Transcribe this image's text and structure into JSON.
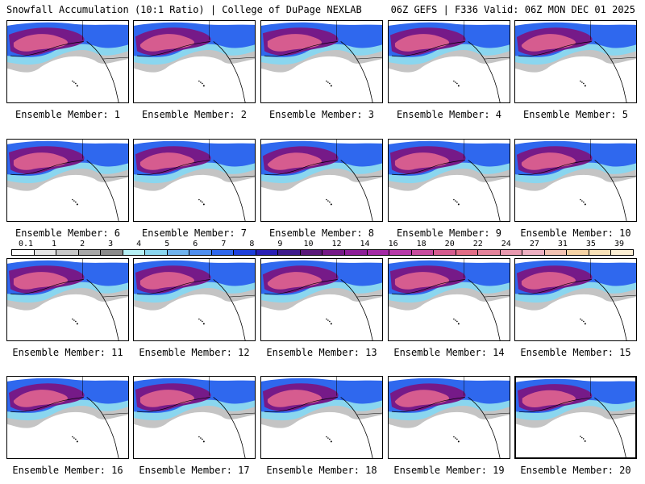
{
  "header": {
    "title_left": "Snowfall Accumulation (10:1 Ratio) | College of DuPage NEXLAB",
    "title_right": "06Z GEFS | F336 Valid: 06Z MON DEC 01 2025"
  },
  "members": [
    {
      "label": "Ensemble Member: 1",
      "selected": false
    },
    {
      "label": "Ensemble Member: 2",
      "selected": false
    },
    {
      "label": "Ensemble Member: 3",
      "selected": false
    },
    {
      "label": "Ensemble Member: 4",
      "selected": false
    },
    {
      "label": "Ensemble Member: 5",
      "selected": false
    },
    {
      "label": "Ensemble Member: 6",
      "selected": false
    },
    {
      "label": "Ensemble Member: 7",
      "selected": false
    },
    {
      "label": "Ensemble Member: 8",
      "selected": false
    },
    {
      "label": "Ensemble Member: 9",
      "selected": false
    },
    {
      "label": "Ensemble Member: 10",
      "selected": false
    },
    {
      "label": "Ensemble Member: 11",
      "selected": false
    },
    {
      "label": "Ensemble Member: 12",
      "selected": false
    },
    {
      "label": "Ensemble Member: 13",
      "selected": false
    },
    {
      "label": "Ensemble Member: 14",
      "selected": false
    },
    {
      "label": "Ensemble Member: 15",
      "selected": false
    },
    {
      "label": "Ensemble Member: 16",
      "selected": false
    },
    {
      "label": "Ensemble Member: 17",
      "selected": false
    },
    {
      "label": "Ensemble Member: 18",
      "selected": false
    },
    {
      "label": "Ensemble Member: 19",
      "selected": false
    },
    {
      "label": "Ensemble Member: 20",
      "selected": true
    }
  ],
  "colorbar": {
    "labels": [
      "0.1",
      "1",
      "2",
      "3",
      "4",
      "5",
      "6",
      "7",
      "8",
      "9",
      "10",
      "12",
      "14",
      "16",
      "18",
      "20",
      "22",
      "24",
      "27",
      "31",
      "35",
      "39"
    ],
    "colors": [
      "#ffffff",
      "#e6e6e6",
      "#c8c8c8",
      "#a8a8a8",
      "#8c8c8c",
      "#b6f0f5",
      "#8ad6ef",
      "#6fb3ee",
      "#4f8ff0",
      "#2f68ee",
      "#1d3fdc",
      "#2a1fb6",
      "#3f1c8c",
      "#5b1a7a",
      "#761a88",
      "#8d1e98",
      "#a42aa6",
      "#b83aaa",
      "#c84c9f",
      "#d65c8f",
      "#e26d86",
      "#e4839b",
      "#e99ab0",
      "#eeb0c2",
      "#f3c3b2",
      "#f6d3a5",
      "#f9e2b8",
      "#fcefd4"
    ]
  },
  "colors": {
    "land_snow_light": "#8ad6ef",
    "land_snow_blue": "#2f68ee",
    "land_snow_purple": "#761a88",
    "land_snow_pink": "#d65c8f",
    "ocean": "#ffffff",
    "gray_low": "#b5b5b5"
  }
}
